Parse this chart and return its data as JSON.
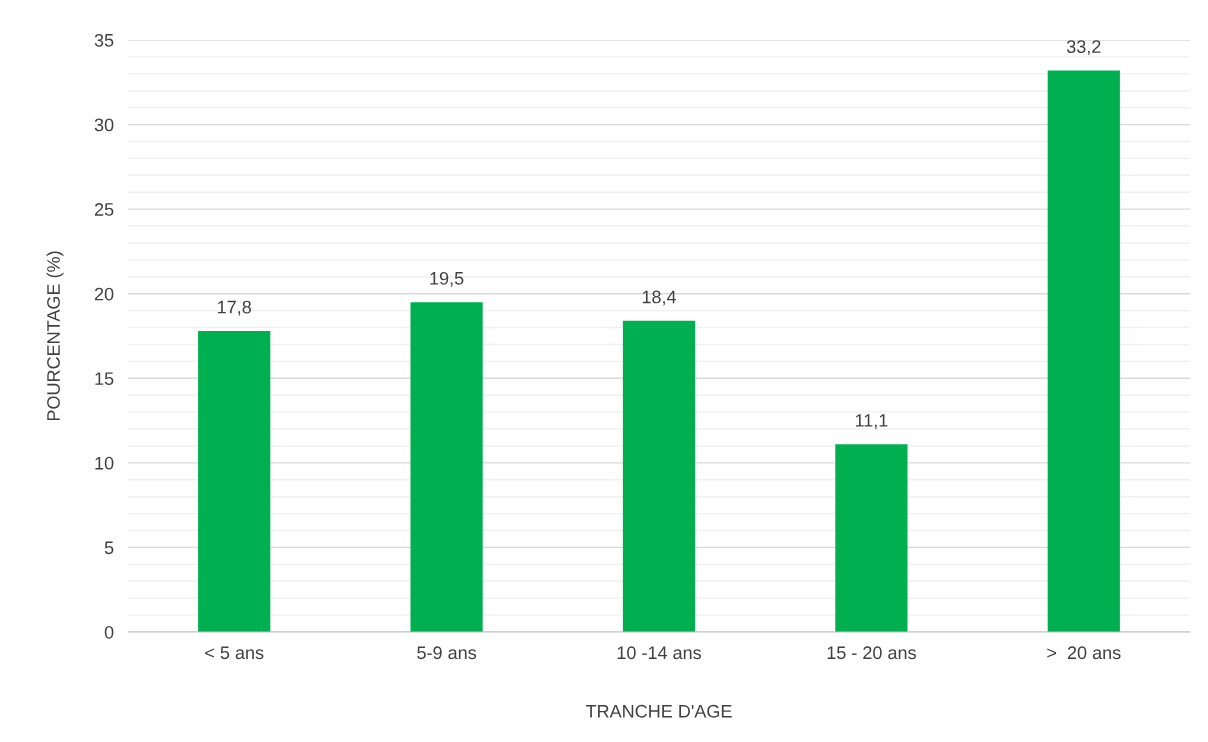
{
  "chart_data": {
    "type": "bar",
    "xlabel": "TRANCHE D'AGE",
    "ylabel": "POURCENTAGE (%)",
    "categories": [
      "< 5 ans",
      "5-9 ans",
      "10 -14 ans",
      "15 - 20 ans",
      ">  20 ans"
    ],
    "values": [
      17.8,
      19.5,
      18.4,
      11.1,
      33.2
    ],
    "value_labels": [
      "17,8",
      "19,5",
      "18,4",
      "11,1",
      "33,2"
    ],
    "color": "#00b050",
    "ylim": [
      0,
      35
    ],
    "yticks": [
      0,
      {
        "value": 1,
        "label": null
      },
      {
        "value": 2,
        "label": null
      },
      {
        "value": 3,
        "label": null
      },
      {
        "value": 4,
        "label": null
      },
      5,
      {
        "value": 6,
        "label": null
      },
      {
        "value": 7,
        "label": null
      },
      {
        "value": 8,
        "label": null
      },
      {
        "value": 9,
        "label": null
      },
      10,
      {
        "value": 11,
        "label": null
      },
      {
        "value": 12,
        "label": null
      },
      {
        "value": 13,
        "label": null
      },
      {
        "value": 14,
        "label": null
      },
      15,
      {
        "value": 16,
        "label": null
      },
      {
        "value": 17,
        "label": null
      },
      {
        "value": 18,
        "label": null
      },
      {
        "value": 19,
        "label": null
      },
      20,
      {
        "value": 21,
        "label": null
      },
      {
        "value": 22,
        "label": null
      },
      {
        "value": 23,
        "label": null
      },
      {
        "value": 24,
        "label": null
      },
      25,
      {
        "value": 26,
        "label": null
      },
      {
        "value": 27,
        "label": null
      },
      {
        "value": 28,
        "label": null
      },
      {
        "value": 29,
        "label": null
      },
      30,
      {
        "value": 31,
        "label": null
      },
      {
        "value": 32,
        "label": null
      },
      {
        "value": 33,
        "label": null
      },
      {
        "value": 34,
        "label": null
      },
      35
    ],
    "grid": "y"
  }
}
